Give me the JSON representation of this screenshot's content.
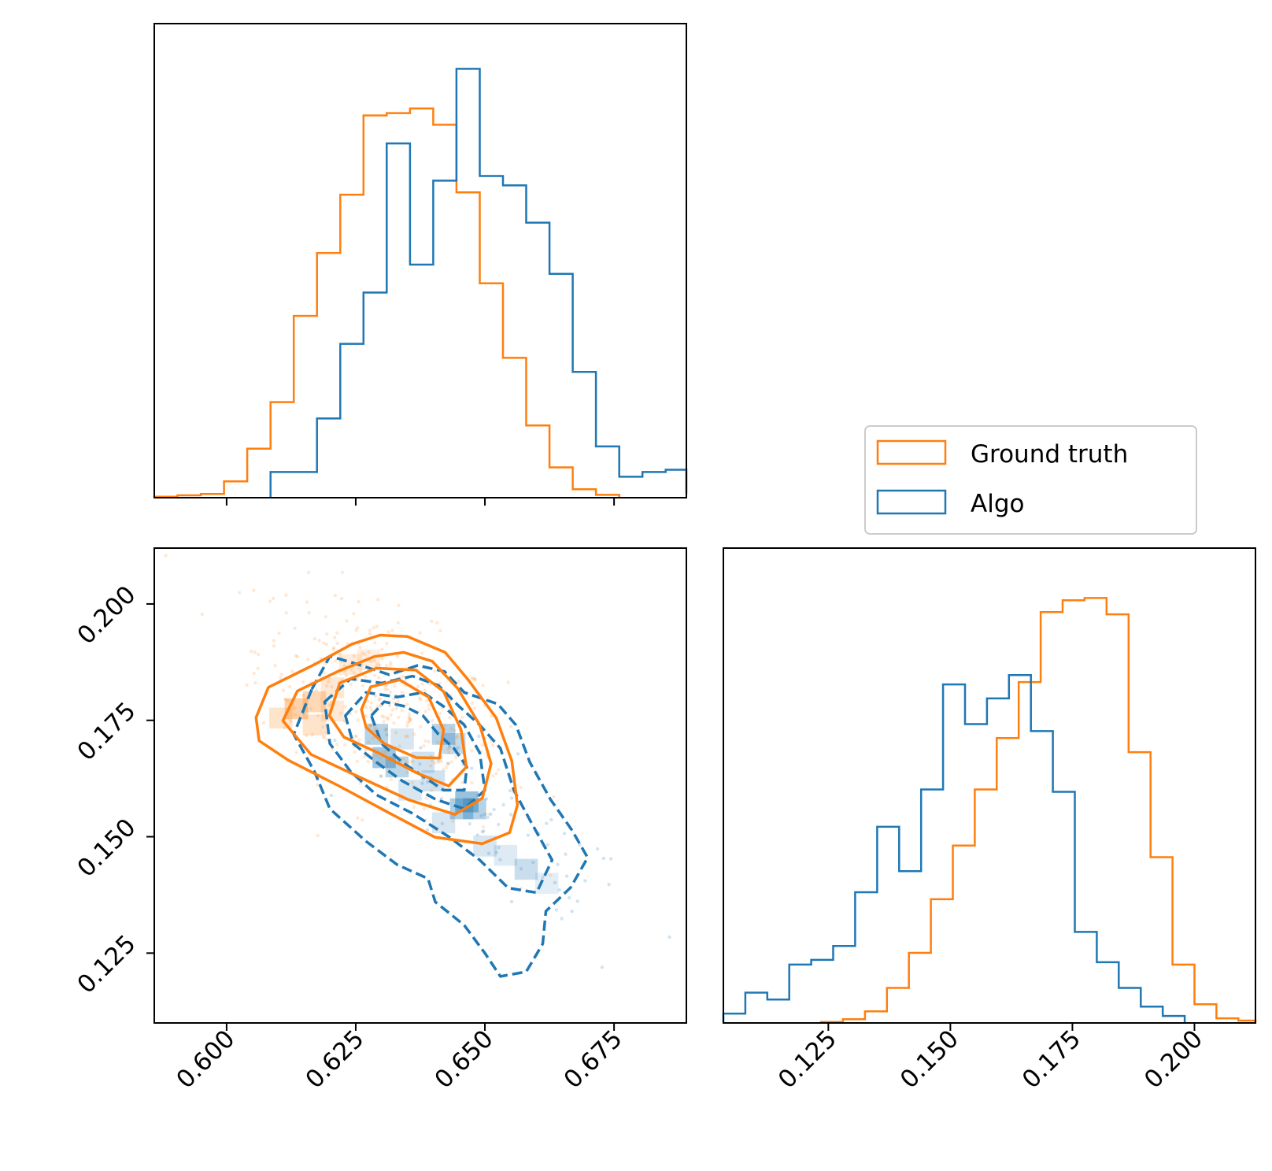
{
  "colors": {
    "ground_truth": "#ff7f0e",
    "algo": "#1f77b4"
  },
  "chart_data": [
    {
      "type": "histogram",
      "panel": "top-left",
      "variable": "x",
      "xlim": [
        0.586,
        0.689
      ],
      "ylim": [
        0,
        1.0
      ],
      "xticks": [
        0.6,
        0.625,
        0.65,
        0.675
      ],
      "show_tick_labels": false,
      "series": [
        {
          "name": "Ground truth",
          "color": "#ff7f0e",
          "bin_edges": [
            0.586,
            0.5905,
            0.595,
            0.5995,
            0.604,
            0.6085,
            0.613,
            0.6175,
            0.622,
            0.6265,
            0.631,
            0.6355,
            0.64,
            0.6445,
            0.649,
            0.6535,
            0.658,
            0.6625,
            0.667,
            0.6715,
            0.676
          ],
          "values": [
            0.002,
            0.005,
            0.008,
            0.035,
            0.105,
            0.205,
            0.39,
            0.525,
            0.65,
            0.82,
            0.825,
            0.835,
            0.8,
            0.655,
            0.46,
            0.3,
            0.155,
            0.065,
            0.018,
            0.006
          ]
        },
        {
          "name": "Algo",
          "color": "#1f77b4",
          "bin_edges": [
            0.6085,
            0.613,
            0.6175,
            0.622,
            0.6265,
            0.631,
            0.6355,
            0.64,
            0.6445,
            0.649,
            0.6535,
            0.658,
            0.6625,
            0.667,
            0.6715,
            0.676,
            0.6805,
            0.685,
            0.689
          ],
          "values": [
            0.055,
            0.055,
            0.17,
            0.33,
            0.44,
            0.76,
            0.5,
            0.68,
            0.92,
            0.69,
            0.67,
            0.59,
            0.48,
            0.27,
            0.11,
            0.045,
            0.055,
            0.06,
            0.008
          ]
        }
      ]
    },
    {
      "type": "scatter_contour",
      "panel": "bottom-left",
      "xlim": [
        0.586,
        0.689
      ],
      "ylim": [
        0.11,
        0.212
      ],
      "xticks": [
        0.6,
        0.625,
        0.65,
        0.675
      ],
      "xtick_labels": [
        "0.600",
        "0.625",
        "0.650",
        "0.675"
      ],
      "yticks": [
        0.125,
        0.15,
        0.175,
        0.2
      ],
      "ytick_labels": [
        "0.125",
        "0.150",
        "0.175",
        "0.200"
      ],
      "ground_truth_contours": [
        [
          [
            0.6057,
            0.1756
          ],
          [
            0.6081,
            0.1821
          ],
          [
            0.6172,
            0.1871
          ],
          [
            0.6243,
            0.1914
          ],
          [
            0.6297,
            0.1933
          ],
          [
            0.635,
            0.193
          ],
          [
            0.6423,
            0.1896
          ],
          [
            0.6467,
            0.1838
          ],
          [
            0.6522,
            0.1755
          ],
          [
            0.6552,
            0.1663
          ],
          [
            0.6563,
            0.1568
          ],
          [
            0.6548,
            0.1509
          ],
          [
            0.6495,
            0.1485
          ],
          [
            0.6403,
            0.1499
          ],
          [
            0.6315,
            0.1551
          ],
          [
            0.6216,
            0.161
          ],
          [
            0.612,
            0.1664
          ],
          [
            0.6063,
            0.1706
          ],
          [
            0.6057,
            0.1756
          ]
        ],
        [
          [
            0.6109,
            0.1749
          ],
          [
            0.6137,
            0.1813
          ],
          [
            0.6215,
            0.1855
          ],
          [
            0.6286,
            0.1887
          ],
          [
            0.6343,
            0.1896
          ],
          [
            0.6398,
            0.1877
          ],
          [
            0.6447,
            0.1819
          ],
          [
            0.649,
            0.174
          ],
          [
            0.6512,
            0.1657
          ],
          [
            0.6495,
            0.1583
          ],
          [
            0.6442,
            0.1548
          ],
          [
            0.6353,
            0.1579
          ],
          [
            0.6259,
            0.1627
          ],
          [
            0.6163,
            0.1677
          ],
          [
            0.6109,
            0.1749
          ]
        ],
        [
          [
            0.6199,
            0.176
          ],
          [
            0.6219,
            0.183
          ],
          [
            0.629,
            0.1862
          ],
          [
            0.6366,
            0.1858
          ],
          [
            0.642,
            0.1812
          ],
          [
            0.6454,
            0.173
          ],
          [
            0.6464,
            0.165
          ],
          [
            0.643,
            0.1609
          ],
          [
            0.6368,
            0.1637
          ],
          [
            0.6294,
            0.168
          ],
          [
            0.6227,
            0.1714
          ],
          [
            0.6199,
            0.176
          ]
        ],
        [
          [
            0.6261,
            0.1773
          ],
          [
            0.6279,
            0.1822
          ],
          [
            0.6335,
            0.1837
          ],
          [
            0.6391,
            0.18
          ],
          [
            0.642,
            0.173
          ],
          [
            0.6412,
            0.1669
          ],
          [
            0.6367,
            0.167
          ],
          [
            0.6305,
            0.17
          ],
          [
            0.627,
            0.1735
          ],
          [
            0.6261,
            0.1773
          ]
        ]
      ],
      "algo_contours": [
        [
          [
            0.6165,
            0.1817
          ],
          [
            0.62,
            0.1888
          ],
          [
            0.6255,
            0.187
          ],
          [
            0.6315,
            0.1848
          ],
          [
            0.637,
            0.1868
          ],
          [
            0.6422,
            0.1855
          ],
          [
            0.646,
            0.181
          ],
          [
            0.6525,
            0.1785
          ],
          [
            0.656,
            0.174
          ],
          [
            0.6587,
            0.166
          ],
          [
            0.6627,
            0.158
          ],
          [
            0.6668,
            0.1515
          ],
          [
            0.6699,
            0.1455
          ],
          [
            0.6666,
            0.1391
          ],
          [
            0.6618,
            0.134
          ],
          [
            0.6612,
            0.127
          ],
          [
            0.658,
            0.121
          ],
          [
            0.653,
            0.12
          ],
          [
            0.65,
            0.125
          ],
          [
            0.646,
            0.131
          ],
          [
            0.6404,
            0.136
          ],
          [
            0.639,
            0.141
          ],
          [
            0.633,
            0.144
          ],
          [
            0.627,
            0.149
          ],
          [
            0.62,
            0.156
          ],
          [
            0.617,
            0.164
          ],
          [
            0.613,
            0.172
          ],
          [
            0.6165,
            0.1817
          ]
        ],
        [
          [
            0.619,
            0.179
          ],
          [
            0.624,
            0.1839
          ],
          [
            0.63,
            0.183
          ],
          [
            0.636,
            0.1845
          ],
          [
            0.641,
            0.1825
          ],
          [
            0.645,
            0.178
          ],
          [
            0.649,
            0.174
          ],
          [
            0.653,
            0.169
          ],
          [
            0.6556,
            0.16
          ],
          [
            0.659,
            0.153
          ],
          [
            0.663,
            0.145
          ],
          [
            0.66,
            0.138
          ],
          [
            0.6545,
            0.139
          ],
          [
            0.649,
            0.145
          ],
          [
            0.643,
            0.15
          ],
          [
            0.636,
            0.155
          ],
          [
            0.629,
            0.159
          ],
          [
            0.624,
            0.164
          ],
          [
            0.62,
            0.17
          ],
          [
            0.619,
            0.179
          ]
        ],
        [
          [
            0.623,
            0.176
          ],
          [
            0.627,
            0.181
          ],
          [
            0.633,
            0.18
          ],
          [
            0.638,
            0.181
          ],
          [
            0.642,
            0.178
          ],
          [
            0.646,
            0.174
          ],
          [
            0.649,
            0.168
          ],
          [
            0.65,
            0.16
          ],
          [
            0.646,
            0.156
          ],
          [
            0.6405,
            0.158
          ],
          [
            0.634,
            0.162
          ],
          [
            0.629,
            0.166
          ],
          [
            0.6245,
            0.17
          ],
          [
            0.623,
            0.176
          ]
        ],
        [
          [
            0.628,
            0.176
          ],
          [
            0.6305,
            0.179
          ],
          [
            0.6345,
            0.178
          ],
          [
            0.638,
            0.176
          ],
          [
            0.641,
            0.172
          ],
          [
            0.644,
            0.169
          ],
          [
            0.6465,
            0.165
          ],
          [
            0.646,
            0.16
          ],
          [
            0.642,
            0.16
          ],
          [
            0.638,
            0.163
          ],
          [
            0.634,
            0.166
          ],
          [
            0.63,
            0.17
          ],
          [
            0.628,
            0.176
          ]
        ]
      ],
      "density_cells_ground_truth": [
        [
          0.6135,
          0.1775,
          0.6
        ],
        [
          0.617,
          0.179,
          0.5
        ],
        [
          0.6105,
          0.1755,
          0.35
        ],
        [
          0.617,
          0.174,
          0.35
        ],
        [
          0.6205,
          0.182,
          0.3
        ],
        [
          0.624,
          0.187,
          0.25
        ],
        [
          0.6205,
          0.177,
          0.3
        ],
        [
          0.6275,
          0.188,
          0.2
        ]
      ],
      "density_cells_algo": [
        [
          0.629,
          0.172,
          0.55
        ],
        [
          0.6305,
          0.167,
          0.7
        ],
        [
          0.633,
          0.165,
          0.5
        ],
        [
          0.642,
          0.172,
          0.55
        ],
        [
          0.644,
          0.17,
          0.45
        ],
        [
          0.6465,
          0.1575,
          0.75
        ],
        [
          0.6455,
          0.156,
          0.6
        ],
        [
          0.648,
          0.156,
          0.55
        ],
        [
          0.658,
          0.143,
          0.4
        ],
        [
          0.638,
          0.166,
          0.35
        ],
        [
          0.64,
          0.162,
          0.35
        ],
        [
          0.6355,
          0.16,
          0.3
        ],
        [
          0.642,
          0.153,
          0.3
        ],
        [
          0.65,
          0.148,
          0.3
        ],
        [
          0.654,
          0.146,
          0.25
        ],
        [
          0.662,
          0.14,
          0.2
        ],
        [
          0.634,
          0.171,
          0.3
        ]
      ]
    },
    {
      "type": "histogram",
      "panel": "bottom-right",
      "variable": "y",
      "xlim": [
        0.1035,
        0.2125
      ],
      "ylim": [
        0,
        1.0
      ],
      "xticks": [
        0.125,
        0.15,
        0.175,
        0.2
      ],
      "xtick_labels": [
        "0.125",
        "0.150",
        "0.175",
        "0.200"
      ],
      "series": [
        {
          "name": "Ground truth",
          "color": "#ff7f0e",
          "bin_edges": [
            0.1235,
            0.128,
            0.1325,
            0.137,
            0.1415,
            0.146,
            0.1505,
            0.155,
            0.1595,
            0.164,
            0.1685,
            0.173,
            0.1775,
            0.182,
            0.1865,
            0.191,
            0.1955,
            0.2,
            0.2045,
            0.209,
            0.2125
          ],
          "values": [
            0.002,
            0.008,
            0.025,
            0.075,
            0.15,
            0.265,
            0.38,
            0.5,
            0.61,
            0.73,
            0.88,
            0.905,
            0.91,
            0.875,
            0.58,
            0.355,
            0.125,
            0.04,
            0.01,
            0.005
          ]
        },
        {
          "name": "Algo",
          "color": "#1f77b4",
          "bin_edges": [
            0.1035,
            0.108,
            0.1125,
            0.117,
            0.1215,
            0.126,
            0.1305,
            0.135,
            0.1395,
            0.144,
            0.1485,
            0.153,
            0.1575,
            0.162,
            0.1665,
            0.171,
            0.1755,
            0.18,
            0.1845,
            0.189,
            0.1935,
            0.198
          ],
          "values": [
            0.02,
            0.065,
            0.05,
            0.125,
            0.135,
            0.165,
            0.28,
            0.42,
            0.325,
            0.5,
            0.725,
            0.64,
            0.695,
            0.745,
            0.625,
            0.495,
            0.195,
            0.13,
            0.075,
            0.035,
            0.015
          ]
        }
      ]
    }
  ],
  "legend": {
    "placement": "between-right-panels",
    "items": [
      {
        "label": "Ground truth",
        "color": "#ff7f0e"
      },
      {
        "label": "Algo",
        "color": "#1f77b4"
      }
    ]
  }
}
